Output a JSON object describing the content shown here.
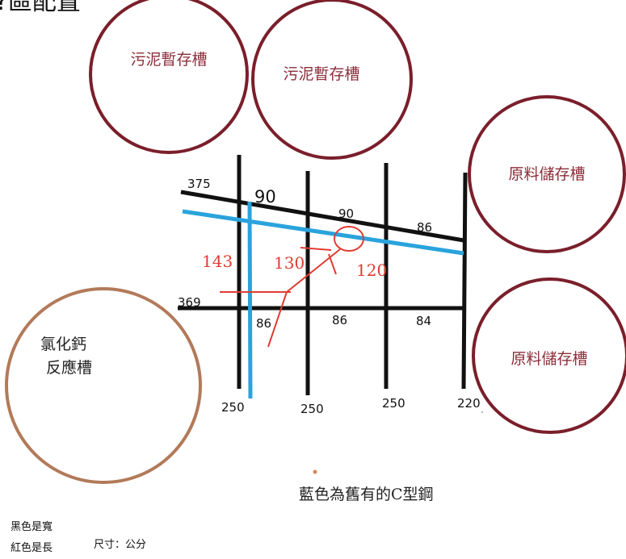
{
  "title": "?區配置",
  "colors": {
    "tank_outline": "#7a1f2b",
    "reactor_outline": "#b27a5a",
    "black_line": "#111111",
    "blue_line": "#2aa3dc",
    "red_line": "#e03c31"
  },
  "tanks": {
    "sludge_1": "污泥暫存槽",
    "sludge_2": "污泥暫存槽",
    "raw_1": "原料儲存槽",
    "raw_2": "原料儲存槽",
    "reactor_line1": "氯化鈣",
    "reactor_line2": "反應槽"
  },
  "black_labels": {
    "top_left": "375",
    "top_90": "90",
    "top_mid_90": "90",
    "top_right_86": "86",
    "mid_left": "369",
    "mid_86_a": "86",
    "mid_86_b": "86",
    "mid_84": "84",
    "bottom_250_a": "250",
    "bottom_250_b": "250",
    "bottom_250_c": "250",
    "bottom_220": "220"
  },
  "red_labels": {
    "l143": "143",
    "l130": "130",
    "l120": "120"
  },
  "caption": "藍色為舊有的C型鋼",
  "legend": {
    "black": "黑色是寬",
    "red": "紅色是長",
    "unit": "尺寸：公分"
  }
}
